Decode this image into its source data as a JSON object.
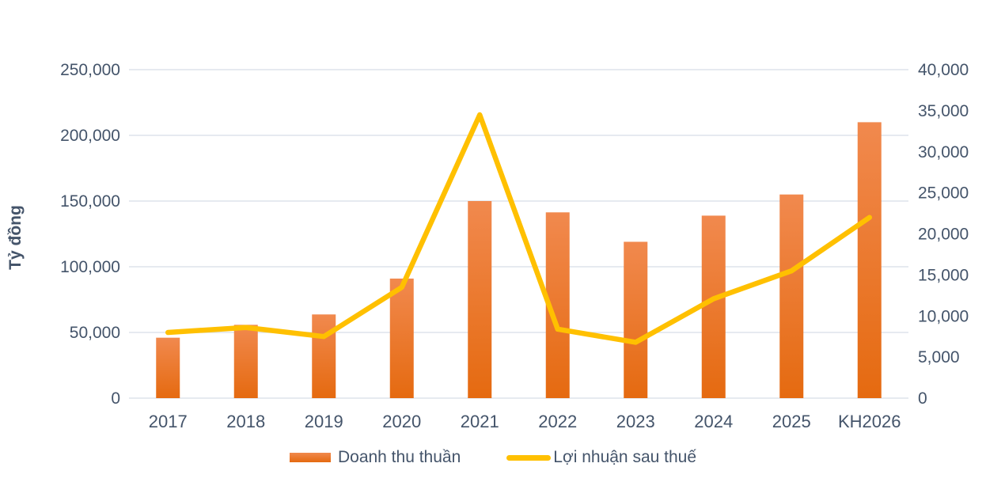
{
  "chart_data": {
    "type": "combo-bar-line",
    "categories": [
      "2017",
      "2018",
      "2019",
      "2020",
      "2021",
      "2022",
      "2023",
      "2024",
      "2025",
      "KH2026"
    ],
    "series": [
      {
        "name": "Doanh thu thuần",
        "type": "bar",
        "axis": "left",
        "values": [
          46000,
          55800,
          63700,
          91000,
          150000,
          141400,
          119000,
          138900,
          155000,
          210000
        ]
      },
      {
        "name": "Lợi nhuận sau thuế",
        "type": "line",
        "axis": "right",
        "values": [
          8000,
          8600,
          7500,
          13500,
          34500,
          8400,
          6800,
          12100,
          15500,
          22000
        ]
      }
    ],
    "left_axis": {
      "title": "Tỷ đồng",
      "min": 0,
      "max": 250000,
      "step": 50000,
      "tick_labels": [
        "0",
        "50,000",
        "100,000",
        "150,000",
        "200,000",
        "250,000"
      ]
    },
    "right_axis": {
      "min": 0,
      "max": 40000,
      "step": 5000,
      "tick_labels": [
        "0",
        "5,000",
        "10,000",
        "15,000",
        "20,000",
        "25,000",
        "30,000",
        "35,000",
        "40,000"
      ]
    },
    "grid": true,
    "legend_position": "bottom",
    "colors": {
      "bar_gradient_top": "#F1894E",
      "bar_gradient_bottom": "#E56A10",
      "line": "#FFC000",
      "axis_text": "#44546A",
      "gridline": "#DEE3EB",
      "background": "#FFFFFF"
    }
  }
}
